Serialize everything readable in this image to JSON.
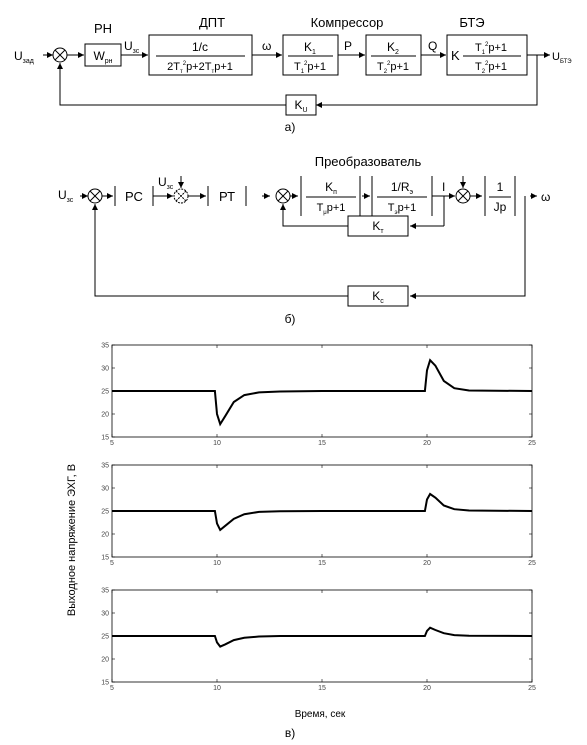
{
  "diagram_a": {
    "labels_top": {
      "pn": "РН",
      "dpt": "ДПТ",
      "compressor": "Компрессор",
      "bte": "БТЭ"
    },
    "input": {
      "main": "U",
      "sub": "зад"
    },
    "output": {
      "main": "U",
      "sub": "БТЭ"
    },
    "w_block": {
      "main": "W",
      "sub": "рн"
    },
    "u_zc": {
      "main": "U",
      "sub": "зс"
    },
    "dpt": {
      "num": "1/c",
      "den_a": "2T",
      "den_sub1": "т",
      "den_sup": "2",
      "den_b": "p+2T",
      "den_sub2": "т",
      "den_c": "p+1"
    },
    "omega": "ω",
    "k1": {
      "num_main": "K",
      "num_sub": "1",
      "den_a": "T",
      "den_sub": "1",
      "den_sup": "2",
      "den_b": "p+1"
    },
    "p_label": "P",
    "k2": {
      "num_main": "K",
      "num_sub": "2",
      "den_a": "T",
      "den_sub": "2",
      "den_sup": "2",
      "den_b": "p+1"
    },
    "q_label": "Q",
    "bte_block": {
      "k": "K",
      "num_a": "T",
      "num_sub": "1",
      "num_sup": "2",
      "num_b": "p+1",
      "den_a": "T",
      "den_sub": "2",
      "den_sup": "2",
      "den_b": "p+1"
    },
    "feedback": {
      "main": "K",
      "sub": "U"
    },
    "caption": "а)"
  },
  "diagram_b": {
    "title": "Преобразователь",
    "input": {
      "main": "U",
      "sub": "зс"
    },
    "pc": "РС",
    "u_zc": {
      "main": "U",
      "sub": "зс"
    },
    "pt": "РТ",
    "kp": {
      "num_main": "K",
      "num_sub": "п",
      "den_a": "T",
      "den_sub": "μ",
      "den_b": "p+1"
    },
    "r_block": {
      "num_a": "1/R",
      "num_sub": "э",
      "den_a": "T",
      "den_sub": "э",
      "den_b": "p+1"
    },
    "i_label": "I",
    "jp": {
      "num": "1",
      "den": "Jp"
    },
    "omega": "ω",
    "kt": {
      "main": "K",
      "sub": "т"
    },
    "kc": {
      "main": "K",
      "sub": "с"
    },
    "caption": "б)"
  },
  "chart_data": {
    "type": "line",
    "ylabel": "Выходное напряжение ЭХГ, В",
    "xlabel": "Время, сек",
    "caption": "в)",
    "xlim": [
      5,
      25
    ],
    "ylim": [
      15,
      35
    ],
    "xticks": [
      5,
      10,
      15,
      20,
      25
    ],
    "yticks": [
      15,
      20,
      25,
      30,
      35
    ],
    "grid": false,
    "panels": [
      {
        "x": [
          5,
          9.9,
          10,
          10.15,
          10.4,
          10.8,
          11.3,
          12,
          13,
          15,
          19.9,
          20,
          20.15,
          20.4,
          20.8,
          21.3,
          22,
          25
        ],
        "y": [
          25,
          25,
          20,
          17.8,
          19.6,
          22.6,
          24.1,
          24.7,
          24.9,
          25,
          25,
          29.5,
          31.7,
          30.5,
          27.2,
          25.6,
          25.1,
          25
        ]
      },
      {
        "x": [
          5,
          9.9,
          10,
          10.15,
          10.4,
          10.8,
          11.3,
          12,
          13,
          15,
          19.9,
          20,
          20.15,
          20.4,
          20.8,
          21.3,
          22,
          25
        ],
        "y": [
          25,
          25,
          22.3,
          20.9,
          21.8,
          23.3,
          24.3,
          24.8,
          24.95,
          25,
          25,
          27.5,
          28.7,
          27.9,
          26.2,
          25.4,
          25.1,
          25
        ]
      },
      {
        "x": [
          5,
          9.9,
          10,
          10.15,
          10.4,
          10.8,
          11.3,
          12,
          13,
          15,
          19.9,
          20,
          20.15,
          20.4,
          20.8,
          21.3,
          22,
          25
        ],
        "y": [
          25,
          25,
          23.6,
          22.7,
          23.2,
          24.1,
          24.6,
          24.9,
          25,
          25,
          25,
          26.1,
          26.8,
          26.3,
          25.6,
          25.2,
          25.05,
          25
        ]
      }
    ]
  }
}
